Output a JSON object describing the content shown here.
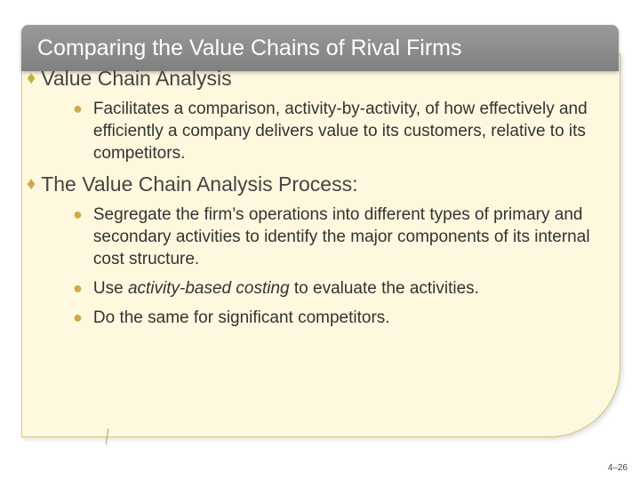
{
  "colors": {
    "bannerGradientTop": "#9a9a9a",
    "bannerGradientBottom": "#808080",
    "cardBackground": "#fdf8de",
    "cardBorder": "#d7c87d",
    "bulletColor": "#d0a84a",
    "titleText": "#ffffff",
    "bodyText": "#333333",
    "pageBackground": "#ffffff"
  },
  "typography": {
    "family": "Arial",
    "titleSize": 25,
    "lvl1Size": 23,
    "lvl2Size": 19,
    "footerSize": 10
  },
  "title": "Comparing the Value Chains of Rival Firms",
  "sections": [
    {
      "heading": "Value Chain Analysis",
      "items": [
        {
          "text": "Facilitates a comparison, activity-by-activity, of how effectively and efficiently a company delivers value to its customers, relative to its competitors."
        }
      ]
    },
    {
      "heading": "The Value Chain Analysis Process:",
      "items": [
        {
          "text": "Segregate the firm’s operations into different types of primary and secondary activities to identify the major components of its internal cost structure."
        },
        {
          "prefix": "Use ",
          "italic": "activity-based costing",
          "suffix": " to evaluate the activities."
        },
        {
          "text": "Do the same for significant competitors."
        }
      ]
    }
  ],
  "footer": "4–26",
  "bullets": {
    "lvl1": "♦",
    "lvl2": "●"
  }
}
